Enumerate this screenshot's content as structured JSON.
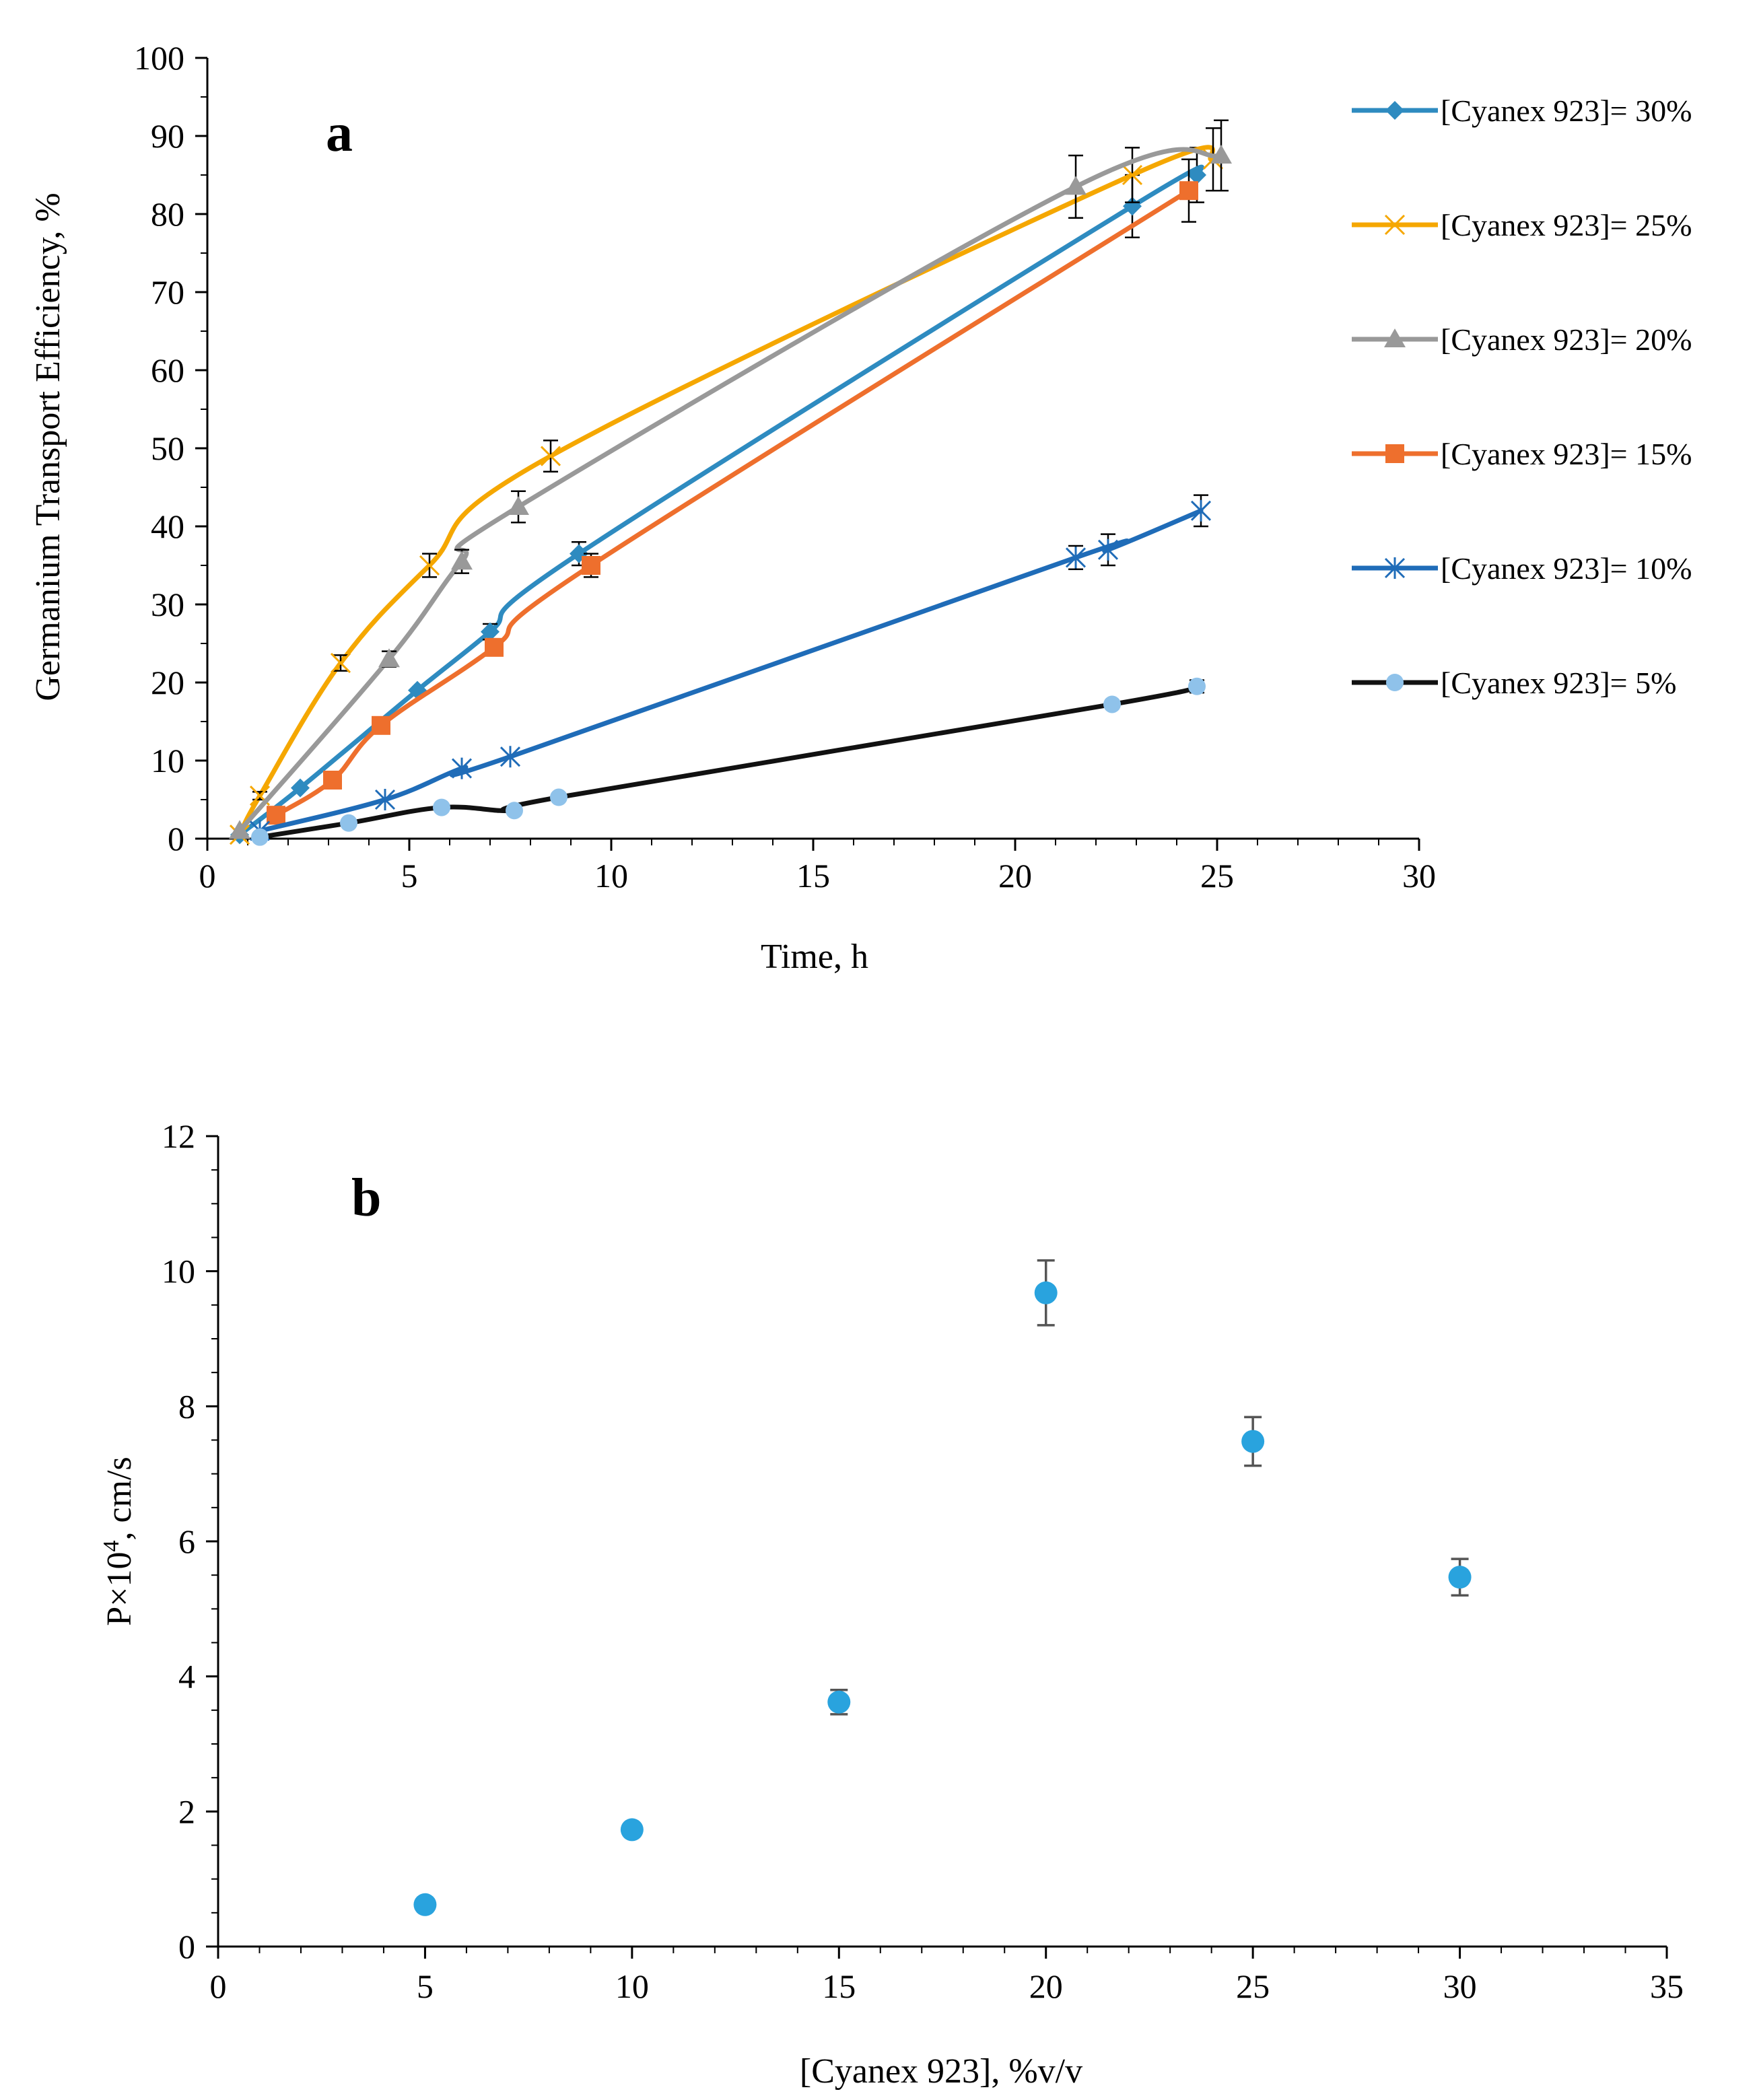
{
  "chart_data": [
    {
      "type": "line",
      "panel_label": "a",
      "xlabel": "Time, h",
      "ylabel": "Germanium Transport Efficiency, %",
      "xlim": [
        0,
        30
      ],
      "ylim": [
        0,
        100
      ],
      "xticks": [
        0,
        5,
        10,
        15,
        20,
        25,
        30
      ],
      "yticks": [
        0,
        10,
        20,
        30,
        40,
        50,
        60,
        70,
        80,
        90,
        100
      ],
      "legend_position": "right",
      "series": [
        {
          "name": "[Cyanex 923]= 30%",
          "color": "#2E8BC0",
          "marker": "diamond",
          "x": [
            0.8,
            2.3,
            5.2,
            7.0,
            9.2,
            22.9,
            24.5
          ],
          "y": [
            0.5,
            6.5,
            19.0,
            26.5,
            36.5,
            81.0,
            85.0
          ],
          "err": [
            0,
            0,
            0,
            1.0,
            1.5,
            4.0,
            3.5
          ]
        },
        {
          "name": "[Cyanex 923]= 25%",
          "color": "#F5A700",
          "marker": "x",
          "x": [
            0.8,
            1.3,
            3.3,
            5.5,
            8.5,
            22.9,
            24.9
          ],
          "y": [
            0.5,
            5.5,
            22.5,
            35.0,
            49.0,
            85.0,
            87.0
          ],
          "err": [
            0,
            0.5,
            1.0,
            1.5,
            2.0,
            3.5,
            4.0
          ]
        },
        {
          "name": "[Cyanex 923]= 20%",
          "color": "#999999",
          "marker": "triangle",
          "x": [
            0.8,
            4.5,
            6.3,
            7.7,
            21.5,
            25.1
          ],
          "y": [
            1.0,
            23.0,
            35.5,
            42.5,
            83.5,
            87.5
          ],
          "err": [
            0,
            1.0,
            1.5,
            2.0,
            4.0,
            4.5
          ]
        },
        {
          "name": "[Cyanex 923]= 15%",
          "color": "#EE6F2D",
          "marker": "square",
          "x": [
            1.7,
            3.1,
            4.3,
            7.1,
            9.5,
            24.3
          ],
          "y": [
            3.0,
            7.5,
            14.5,
            24.5,
            35.0,
            83.0
          ],
          "err": [
            0,
            0,
            0,
            0,
            1.5,
            4.0
          ]
        },
        {
          "name": "[Cyanex 923]= 10%",
          "color": "#1F6CB8",
          "marker": "star",
          "x": [
            1.3,
            4.4,
            6.3,
            7.5,
            21.5,
            22.3,
            24.6
          ],
          "y": [
            1.0,
            5.0,
            9.0,
            10.5,
            36.0,
            37.0,
            42.0
          ],
          "err": [
            0,
            0,
            0,
            0,
            1.5,
            2.0,
            2.0
          ]
        },
        {
          "name": "[Cyanex 923]= 5%",
          "color": "#111111",
          "marker_color": "#8FC2EA",
          "marker": "circle",
          "x": [
            1.3,
            3.5,
            5.8,
            7.6,
            8.7,
            22.4,
            24.5
          ],
          "y": [
            0.2,
            2.0,
            4.0,
            3.6,
            5.3,
            17.2,
            19.5
          ],
          "err": [
            0,
            0,
            0,
            0,
            0,
            0.5,
            0.8
          ]
        }
      ]
    },
    {
      "type": "scatter",
      "panel_label": "b",
      "xlabel": "[Cyanex 923], %v/v",
      "ylabel_main": "P×10",
      "ylabel_sup": "4",
      "ylabel_rest": ", cm/s",
      "xlim": [
        0,
        35
      ],
      "ylim": [
        0,
        12
      ],
      "xticks": [
        0,
        5,
        10,
        15,
        20,
        25,
        30,
        35
      ],
      "yticks": [
        0,
        2,
        4,
        6,
        8,
        10,
        12
      ],
      "color": "#29A3DE",
      "x": [
        5,
        10,
        15,
        20,
        25,
        30
      ],
      "y": [
        0.62,
        1.73,
        3.62,
        9.68,
        7.48,
        5.47
      ],
      "err": [
        0,
        0,
        0.18,
        0.48,
        0.36,
        0.27
      ]
    }
  ]
}
